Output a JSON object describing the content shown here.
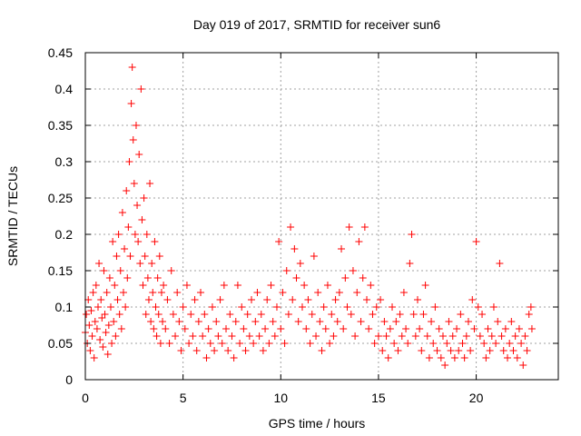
{
  "chart_data": {
    "type": "scatter",
    "title": "Day 019 of 2017, SRMTID for receiver sun6",
    "xlabel": "GPS time / hours",
    "ylabel": "SRMTID / TECUs",
    "xlim": [
      0,
      24.2
    ],
    "ylim": [
      0,
      0.45
    ],
    "xticks": [
      0,
      5,
      10,
      15,
      20
    ],
    "xtick_labels": [
      "0",
      "5",
      "10",
      "15",
      "20"
    ],
    "yticks": [
      0,
      0.05,
      0.1,
      0.15,
      0.2,
      0.25,
      0.3,
      0.35,
      0.4,
      0.45
    ],
    "ytick_labels": [
      "0",
      "0.05",
      "0.1",
      "0.15",
      "0.2",
      "0.25",
      "0.3",
      "0.35",
      "0.4",
      "0.45"
    ],
    "grid": true,
    "marker": "+",
    "color": "#ff0000",
    "series": [
      {
        "name": "SRMTID",
        "points": [
          [
            0.0,
            0.065
          ],
          [
            0.05,
            0.09
          ],
          [
            0.1,
            0.05
          ],
          [
            0.15,
            0.11
          ],
          [
            0.2,
            0.075
          ],
          [
            0.25,
            0.04
          ],
          [
            0.3,
            0.095
          ],
          [
            0.35,
            0.06
          ],
          [
            0.4,
            0.12
          ],
          [
            0.45,
            0.03
          ],
          [
            0.5,
            0.08
          ],
          [
            0.55,
            0.13
          ],
          [
            0.6,
            0.07
          ],
          [
            0.65,
            0.1
          ],
          [
            0.7,
            0.16
          ],
          [
            0.75,
            0.055
          ],
          [
            0.8,
            0.11
          ],
          [
            0.85,
            0.085
          ],
          [
            0.9,
            0.045
          ],
          [
            0.95,
            0.15
          ],
          [
            1.0,
            0.09
          ],
          [
            1.05,
            0.065
          ],
          [
            1.1,
            0.12
          ],
          [
            1.15,
            0.035
          ],
          [
            1.2,
            0.075
          ],
          [
            1.25,
            0.14
          ],
          [
            1.3,
            0.1
          ],
          [
            1.35,
            0.05
          ],
          [
            1.4,
            0.19
          ],
          [
            1.45,
            0.08
          ],
          [
            1.5,
            0.13
          ],
          [
            1.55,
            0.06
          ],
          [
            1.6,
            0.17
          ],
          [
            1.65,
            0.11
          ],
          [
            1.7,
            0.2
          ],
          [
            1.75,
            0.09
          ],
          [
            1.8,
            0.15
          ],
          [
            1.85,
            0.07
          ],
          [
            1.9,
            0.23
          ],
          [
            1.95,
            0.12
          ],
          [
            2.0,
            0.18
          ],
          [
            2.05,
            0.1
          ],
          [
            2.1,
            0.26
          ],
          [
            2.15,
            0.14
          ],
          [
            2.2,
            0.21
          ],
          [
            2.25,
            0.3
          ],
          [
            2.3,
            0.17
          ],
          [
            2.35,
            0.38
          ],
          [
            2.4,
            0.43
          ],
          [
            2.45,
            0.33
          ],
          [
            2.5,
            0.27
          ],
          [
            2.55,
            0.2
          ],
          [
            2.6,
            0.35
          ],
          [
            2.65,
            0.24
          ],
          [
            2.7,
            0.19
          ],
          [
            2.75,
            0.31
          ],
          [
            2.8,
            0.16
          ],
          [
            2.85,
            0.4
          ],
          [
            2.9,
            0.22
          ],
          [
            2.95,
            0.13
          ],
          [
            3.0,
            0.25
          ],
          [
            3.05,
            0.17
          ],
          [
            3.1,
            0.09
          ],
          [
            3.15,
            0.2
          ],
          [
            3.2,
            0.14
          ],
          [
            3.25,
            0.11
          ],
          [
            3.3,
            0.27
          ],
          [
            3.35,
            0.08
          ],
          [
            3.4,
            0.16
          ],
          [
            3.45,
            0.12
          ],
          [
            3.5,
            0.07
          ],
          [
            3.55,
            0.19
          ],
          [
            3.6,
            0.1
          ],
          [
            3.65,
            0.06
          ],
          [
            3.7,
            0.14
          ],
          [
            3.75,
            0.09
          ],
          [
            3.8,
            0.17
          ],
          [
            3.85,
            0.05
          ],
          [
            3.9,
            0.12
          ],
          [
            3.95,
            0.08
          ],
          [
            4.0,
            0.13
          ],
          [
            4.1,
            0.07
          ],
          [
            4.2,
            0.11
          ],
          [
            4.3,
            0.05
          ],
          [
            4.4,
            0.15
          ],
          [
            4.5,
            0.09
          ],
          [
            4.6,
            0.06
          ],
          [
            4.7,
            0.12
          ],
          [
            4.8,
            0.08
          ],
          [
            4.9,
            0.04
          ],
          [
            5.0,
            0.1
          ],
          [
            5.1,
            0.07
          ],
          [
            5.2,
            0.13
          ],
          [
            5.3,
            0.05
          ],
          [
            5.4,
            0.09
          ],
          [
            5.5,
            0.06
          ],
          [
            5.6,
            0.11
          ],
          [
            5.7,
            0.04
          ],
          [
            5.8,
            0.08
          ],
          [
            5.9,
            0.12
          ],
          [
            6.0,
            0.06
          ],
          [
            6.1,
            0.09
          ],
          [
            6.2,
            0.03
          ],
          [
            6.3,
            0.07
          ],
          [
            6.4,
            0.05
          ],
          [
            6.5,
            0.1
          ],
          [
            6.6,
            0.04
          ],
          [
            6.7,
            0.08
          ],
          [
            6.8,
            0.06
          ],
          [
            6.9,
            0.11
          ],
          [
            7.0,
            0.05
          ],
          [
            7.1,
            0.13
          ],
          [
            7.2,
            0.07
          ],
          [
            7.3,
            0.04
          ],
          [
            7.4,
            0.09
          ],
          [
            7.5,
            0.06
          ],
          [
            7.6,
            0.03
          ],
          [
            7.7,
            0.08
          ],
          [
            7.8,
            0.13
          ],
          [
            7.9,
            0.05
          ],
          [
            8.0,
            0.1
          ],
          [
            8.1,
            0.07
          ],
          [
            8.2,
            0.04
          ],
          [
            8.3,
            0.09
          ],
          [
            8.4,
            0.06
          ],
          [
            8.5,
            0.11
          ],
          [
            8.6,
            0.05
          ],
          [
            8.7,
            0.08
          ],
          [
            8.8,
            0.12
          ],
          [
            8.9,
            0.06
          ],
          [
            9.0,
            0.09
          ],
          [
            9.1,
            0.04
          ],
          [
            9.2,
            0.07
          ],
          [
            9.3,
            0.11
          ],
          [
            9.4,
            0.05
          ],
          [
            9.5,
            0.13
          ],
          [
            9.6,
            0.08
          ],
          [
            9.7,
            0.06
          ],
          [
            9.8,
            0.1
          ],
          [
            9.9,
            0.19
          ],
          [
            10.0,
            0.07
          ],
          [
            10.1,
            0.12
          ],
          [
            10.2,
            0.05
          ],
          [
            10.3,
            0.15
          ],
          [
            10.4,
            0.09
          ],
          [
            10.5,
            0.21
          ],
          [
            10.6,
            0.11
          ],
          [
            10.7,
            0.18
          ],
          [
            10.8,
            0.14
          ],
          [
            10.9,
            0.08
          ],
          [
            11.0,
            0.16
          ],
          [
            11.1,
            0.1
          ],
          [
            11.2,
            0.13
          ],
          [
            11.3,
            0.07
          ],
          [
            11.4,
            0.11
          ],
          [
            11.5,
            0.05
          ],
          [
            11.6,
            0.09
          ],
          [
            11.7,
            0.17
          ],
          [
            11.8,
            0.06
          ],
          [
            11.9,
            0.12
          ],
          [
            12.0,
            0.08
          ],
          [
            12.1,
            0.04
          ],
          [
            12.2,
            0.1
          ],
          [
            12.3,
            0.07
          ],
          [
            12.4,
            0.13
          ],
          [
            12.5,
            0.05
          ],
          [
            12.6,
            0.09
          ],
          [
            12.7,
            0.06
          ],
          [
            12.8,
            0.11
          ],
          [
            12.9,
            0.08
          ],
          [
            13.0,
            0.12
          ],
          [
            13.1,
            0.18
          ],
          [
            13.2,
            0.07
          ],
          [
            13.3,
            0.14
          ],
          [
            13.4,
            0.1
          ],
          [
            13.5,
            0.21
          ],
          [
            13.6,
            0.09
          ],
          [
            13.7,
            0.15
          ],
          [
            13.8,
            0.06
          ],
          [
            13.9,
            0.12
          ],
          [
            14.0,
            0.19
          ],
          [
            14.1,
            0.08
          ],
          [
            14.2,
            0.14
          ],
          [
            14.3,
            0.21
          ],
          [
            14.4,
            0.11
          ],
          [
            14.5,
            0.07
          ],
          [
            14.6,
            0.13
          ],
          [
            14.7,
            0.09
          ],
          [
            14.8,
            0.05
          ],
          [
            14.9,
            0.1
          ],
          [
            15.0,
            0.06
          ],
          [
            15.1,
            0.11
          ],
          [
            15.2,
            0.04
          ],
          [
            15.3,
            0.08
          ],
          [
            15.4,
            0.06
          ],
          [
            15.5,
            0.03
          ],
          [
            15.6,
            0.07
          ],
          [
            15.7,
            0.1
          ],
          [
            15.8,
            0.05
          ],
          [
            15.9,
            0.08
          ],
          [
            16.0,
            0.04
          ],
          [
            16.1,
            0.09
          ],
          [
            16.2,
            0.06
          ],
          [
            16.3,
            0.12
          ],
          [
            16.4,
            0.07
          ],
          [
            16.5,
            0.05
          ],
          [
            16.6,
            0.16
          ],
          [
            16.7,
            0.2
          ],
          [
            16.8,
            0.09
          ],
          [
            16.9,
            0.06
          ],
          [
            17.0,
            0.11
          ],
          [
            17.1,
            0.07
          ],
          [
            17.2,
            0.04
          ],
          [
            17.3,
            0.09
          ],
          [
            17.4,
            0.13
          ],
          [
            17.5,
            0.06
          ],
          [
            17.6,
            0.03
          ],
          [
            17.7,
            0.08
          ],
          [
            17.8,
            0.05
          ],
          [
            17.9,
            0.1
          ],
          [
            18.0,
            0.04
          ],
          [
            18.1,
            0.07
          ],
          [
            18.2,
            0.03
          ],
          [
            18.3,
            0.06
          ],
          [
            18.4,
            0.02
          ],
          [
            18.5,
            0.05
          ],
          [
            18.6,
            0.08
          ],
          [
            18.7,
            0.04
          ],
          [
            18.8,
            0.06
          ],
          [
            18.9,
            0.03
          ],
          [
            19.0,
            0.07
          ],
          [
            19.1,
            0.04
          ],
          [
            19.2,
            0.09
          ],
          [
            19.3,
            0.05
          ],
          [
            19.4,
            0.03
          ],
          [
            19.5,
            0.06
          ],
          [
            19.6,
            0.08
          ],
          [
            19.7,
            0.04
          ],
          [
            19.8,
            0.11
          ],
          [
            19.9,
            0.07
          ],
          [
            20.0,
            0.19
          ],
          [
            20.1,
            0.1
          ],
          [
            20.2,
            0.06
          ],
          [
            20.3,
            0.09
          ],
          [
            20.4,
            0.05
          ],
          [
            20.5,
            0.03
          ],
          [
            20.6,
            0.07
          ],
          [
            20.7,
            0.04
          ],
          [
            20.8,
            0.06
          ],
          [
            20.9,
            0.1
          ],
          [
            21.0,
            0.05
          ],
          [
            21.1,
            0.08
          ],
          [
            21.2,
            0.16
          ],
          [
            21.3,
            0.06
          ],
          [
            21.4,
            0.04
          ],
          [
            21.5,
            0.07
          ],
          [
            21.6,
            0.03
          ],
          [
            21.7,
            0.05
          ],
          [
            21.8,
            0.08
          ],
          [
            21.9,
            0.04
          ],
          [
            22.0,
            0.06
          ],
          [
            22.1,
            0.03
          ],
          [
            22.2,
            0.07
          ],
          [
            22.3,
            0.05
          ],
          [
            22.4,
            0.02
          ],
          [
            22.5,
            0.06
          ],
          [
            22.6,
            0.04
          ],
          [
            22.7,
            0.09
          ],
          [
            22.8,
            0.1
          ],
          [
            22.85,
            0.07
          ]
        ]
      }
    ]
  }
}
